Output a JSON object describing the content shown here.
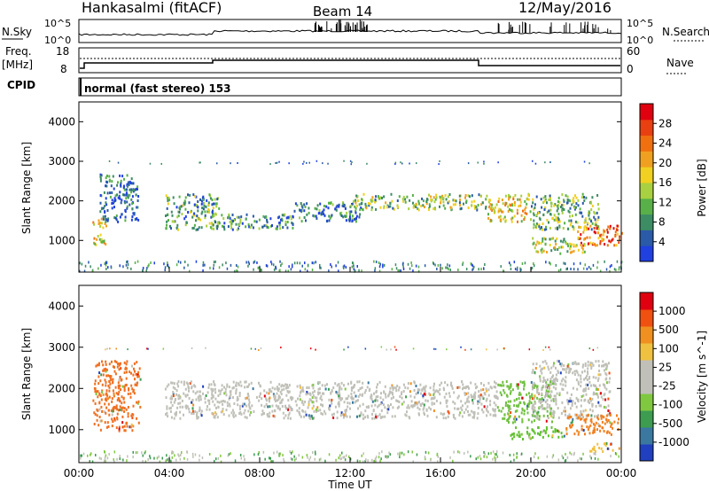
{
  "header": {
    "station": "Hankasalmi (fitACF)",
    "beam": "Beam 14",
    "date": "12/May/2016"
  },
  "strips": {
    "nsky_label": "N.Sky",
    "nsearch_label": "N.Search",
    "nsky_ticks": [
      "10^5",
      "10^0"
    ],
    "nsearch_ticks": [
      "10^5",
      "10^0"
    ],
    "freq_label_1": "Freq.",
    "freq_label_2": "[MHz]",
    "freq_ticks": [
      "18",
      "8"
    ],
    "nave_label": "Nave",
    "nave_ticks": [
      "60",
      "0"
    ],
    "cpid_label": "CPID",
    "cpid_text": "normal (fast stereo) 153"
  },
  "chart_data": [
    {
      "type": "heatmap",
      "panel": "power",
      "ylabel": "Slant Range [km]",
      "ylim": [
        200,
        4500
      ],
      "y_ticks": [
        "1000",
        "2000",
        "3000",
        "4000"
      ],
      "colorbar": {
        "label": "Power [dB]",
        "ticks": [
          "4",
          "8",
          "12",
          "16",
          "20",
          "24",
          "28"
        ],
        "colors": [
          "#2040e0",
          "#2a5aa8",
          "#3c8c64",
          "#58b048",
          "#a8d040",
          "#f0d020",
          "#f0a020",
          "#f07010",
          "#e84010",
          "#e00010"
        ]
      },
      "regions": [
        {
          "t0": 0.6,
          "t1": 1.2,
          "r0": 900,
          "r1": 1600,
          "level": 0.55
        },
        {
          "t0": 0.9,
          "t1": 2.6,
          "r0": 1500,
          "r1": 2700,
          "level": 0.15
        },
        {
          "t0": 3.8,
          "t1": 6.2,
          "r0": 1300,
          "r1": 2200,
          "level": 0.3
        },
        {
          "t0": 6.0,
          "t1": 9.5,
          "r0": 1300,
          "r1": 1700,
          "level": 0.25
        },
        {
          "t0": 9.5,
          "t1": 12.5,
          "r0": 1500,
          "r1": 2000,
          "level": 0.2
        },
        {
          "t0": 12.0,
          "t1": 18.0,
          "r0": 1800,
          "r1": 2200,
          "level": 0.4
        },
        {
          "t0": 18.0,
          "t1": 20.0,
          "r0": 1500,
          "r1": 2200,
          "level": 0.55
        },
        {
          "t0": 20.0,
          "t1": 23.0,
          "r0": 1300,
          "r1": 2200,
          "level": 0.35
        },
        {
          "t0": 22.0,
          "t1": 24.0,
          "r0": 900,
          "r1": 1400,
          "level": 0.75
        },
        {
          "t0": 20.0,
          "t1": 22.5,
          "r0": 700,
          "r1": 1100,
          "level": 0.45
        }
      ]
    },
    {
      "type": "heatmap",
      "panel": "velocity",
      "xlabel": "Time UT",
      "ylabel": "Slant Range [km]",
      "ylim": [
        200,
        4500
      ],
      "xlim": [
        0,
        24
      ],
      "x_ticks": [
        "00:00",
        "04:00",
        "08:00",
        "12:00",
        "16:00",
        "20:00",
        "00:00"
      ],
      "y_ticks": [
        "1000",
        "2000",
        "3000",
        "4000"
      ],
      "colorbar": {
        "label": "Velocity [m s^-1]",
        "ticks": [
          "1000",
          "500",
          "100",
          "25",
          "-25",
          "-100",
          "-500",
          "-1000"
        ],
        "colors": [
          "#2040c0",
          "#3a78a0",
          "#3c9c50",
          "#80c840",
          "#c0c0b8",
          "#c0c0b8",
          "#f0c040",
          "#f09020",
          "#f05010",
          "#e00010"
        ]
      },
      "regions": [
        {
          "t0": 0.6,
          "t1": 2.7,
          "r0": 1000,
          "r1": 2700,
          "color": "#f07020"
        },
        {
          "t0": 3.8,
          "t1": 18.5,
          "r0": 1300,
          "r1": 2200,
          "color": "#c0c0b8"
        },
        {
          "t0": 18.5,
          "t1": 21.0,
          "r0": 1200,
          "r1": 2200,
          "color": "#70c040"
        },
        {
          "t0": 20.0,
          "t1": 23.5,
          "r0": 1300,
          "r1": 2700,
          "color": "#c0c0b8"
        },
        {
          "t0": 21.5,
          "t1": 24.0,
          "r0": 900,
          "r1": 1400,
          "color": "#f08020"
        },
        {
          "t0": 19.0,
          "t1": 21.5,
          "r0": 800,
          "r1": 1100,
          "color": "#60c030"
        },
        {
          "t0": 22.5,
          "t1": 24.0,
          "r0": 500,
          "r1": 700,
          "color": "#f0c040"
        }
      ]
    }
  ]
}
